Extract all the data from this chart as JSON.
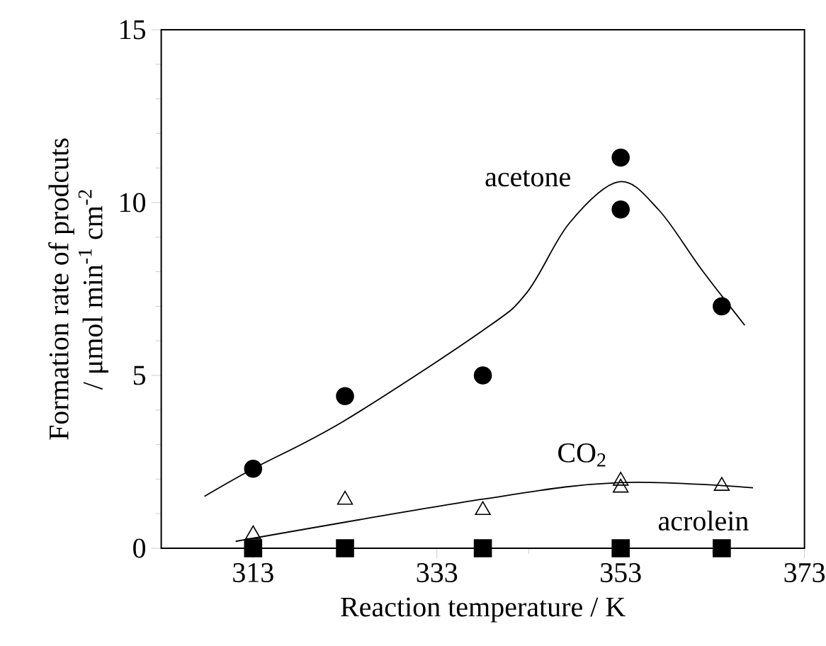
{
  "chart_data": {
    "type": "scatter",
    "xlabel": "Reaction temperature / K",
    "ylabel": [
      "Formation rate of prodcuts",
      "/ μmol min$^{-1}$ cm$^{-2}$"
    ],
    "xlim": [
      303,
      373
    ],
    "xticks": [
      313,
      333,
      353,
      373
    ],
    "ylim": [
      0,
      15
    ],
    "yticks": [
      0,
      5,
      10,
      15
    ],
    "grid": false,
    "series": [
      {
        "marker": "circle",
        "color": "#000000",
        "x": [
          313,
          323,
          338,
          353,
          353,
          364
        ],
        "values": [
          2.3,
          4.4,
          5.0,
          11.3,
          9.8,
          7.0
        ]
      },
      {
        "marker": "triangle",
        "color": "#000000",
        "x": [
          313,
          323,
          338,
          353,
          353,
          364
        ],
        "values": [
          0.4,
          1.4,
          1.1,
          1.95,
          1.75,
          1.8
        ]
      },
      {
        "marker": "square",
        "color": "#000000",
        "x": [
          313,
          323,
          338,
          353,
          364
        ],
        "values": [
          0,
          0,
          0,
          0,
          0
        ]
      },
      {
        "type": "line",
        "marker": "none",
        "color": "#000000",
        "x": [
          307.7,
          313,
          323,
          338,
          342.8,
          347.4,
          352.8,
          357.1,
          361.7,
          366.5
        ],
        "values": [
          1.5,
          2.3,
          3.7,
          6.3,
          7.4,
          9.4,
          10.6,
          9.8,
          8.1,
          6.45
        ]
      },
      {
        "type": "line",
        "marker": "none",
        "color": "#000000",
        "x": [
          311.1,
          338,
          352.8,
          367.4
        ],
        "values": [
          0.2,
          1.42,
          1.9,
          1.75
        ]
      }
    ],
    "annotations": [
      "acetone",
      "CO$_{2}$",
      "acrolein"
    ]
  }
}
